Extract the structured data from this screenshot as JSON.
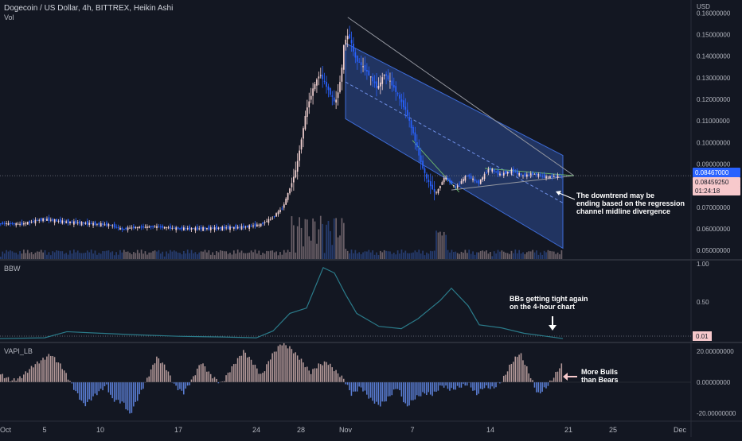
{
  "header": {
    "title": "Dogecoin / US Dollar, 4h, BITTREX, Heikin Ashi",
    "vol_label": "Vol"
  },
  "axis": {
    "currency": "USD"
  },
  "tags": {
    "price": "0.08467000",
    "price2": "0.08459250",
    "countdown": "01:24:18",
    "bbw_value": "0.01"
  },
  "annotations": {
    "main_1": "The downtrend may be",
    "main_2": "ending based on the regression",
    "main_3": "channel midline divergence",
    "bbw_1": "BBs getting tight again",
    "bbw_2": "on the 4-hour chart",
    "vapi_1": "More Bulls",
    "vapi_2": "than Bears"
  },
  "indicators": {
    "bbw": "BBW",
    "vapi": "VAPI_LB"
  },
  "colors": {
    "up": "#f5d4d4",
    "down": "#2962ff",
    "channel": "#3d6bd6",
    "bg": "#131722",
    "bbw_line": "#2b7b8a",
    "vapi_pos": "#b59a9a",
    "vapi_neg": "#5b7fd6"
  },
  "chart_data": [
    {
      "type": "candlestick",
      "title": "Dogecoin / US Dollar, 4h, BITTREX, Heikin Ashi",
      "ylim": [
        0.046,
        0.166
      ],
      "y_ticks": [
        0.05,
        0.06,
        0.07,
        0.08,
        0.09,
        0.1,
        0.11,
        0.12,
        0.13,
        0.14,
        0.15,
        0.16
      ],
      "x_ticks": [
        "Oct",
        "5",
        "10",
        "17",
        "24",
        "28",
        "Nov",
        "7",
        "14",
        "21",
        "25",
        "Dec"
      ],
      "x_tick_days": [
        1,
        5,
        10,
        17,
        24,
        28,
        32,
        38,
        45,
        52,
        56,
        62
      ],
      "x_range_days": [
        1,
        63
      ],
      "close_path": [
        [
          1,
          0.0625
        ],
        [
          3,
          0.0622
        ],
        [
          5,
          0.0645
        ],
        [
          7,
          0.0632
        ],
        [
          9,
          0.0625
        ],
        [
          11,
          0.0618
        ],
        [
          12,
          0.0598
        ],
        [
          13,
          0.0606
        ],
        [
          15,
          0.061
        ],
        [
          17,
          0.0602
        ],
        [
          19,
          0.0601
        ],
        [
          21,
          0.0604
        ],
        [
          23,
          0.0608
        ],
        [
          24.5,
          0.062
        ],
        [
          25.5,
          0.065
        ],
        [
          26.5,
          0.07
        ],
        [
          27.2,
          0.08
        ],
        [
          27.7,
          0.088
        ],
        [
          28.1,
          0.1
        ],
        [
          28.6,
          0.115
        ],
        [
          29.2,
          0.125
        ],
        [
          29.8,
          0.132
        ],
        [
          30.5,
          0.125
        ],
        [
          31.2,
          0.118
        ],
        [
          31.7,
          0.13
        ],
        [
          32.0,
          0.147
        ],
        [
          32.4,
          0.15
        ],
        [
          33,
          0.139
        ],
        [
          34,
          0.133
        ],
        [
          35,
          0.125
        ],
        [
          35.6,
          0.132
        ],
        [
          36.5,
          0.125
        ],
        [
          37.5,
          0.115
        ],
        [
          38.2,
          0.104
        ],
        [
          38.8,
          0.092
        ],
        [
          39.4,
          0.083
        ],
        [
          40.2,
          0.076
        ],
        [
          41,
          0.084
        ],
        [
          42,
          0.079
        ],
        [
          43,
          0.085
        ],
        [
          44,
          0.081
        ],
        [
          45,
          0.088
        ],
        [
          46,
          0.085
        ],
        [
          47,
          0.087
        ],
        [
          48,
          0.0845
        ],
        [
          49,
          0.0855
        ],
        [
          50,
          0.084
        ],
        [
          51.5,
          0.0846
        ]
      ],
      "regression_channel": {
        "start_day": 32.0,
        "end_day": 51.5,
        "upper": [
          0.146,
          0.094
        ],
        "mid": [
          0.128,
          0.072
        ],
        "lower": [
          0.111,
          0.051
        ]
      },
      "triangle": {
        "apex_day": 52.5,
        "apex_value": 0.0846,
        "upper_start": [
          32.2,
          0.158
        ],
        "lower_start": [
          41.5,
          0.078
        ]
      },
      "volume_note": "volume bars along the bottom of the price pane"
    },
    {
      "type": "line",
      "name": "BBW",
      "ylim": [
        0,
        1.0
      ],
      "y_ticks": [
        0.5,
        1.0
      ],
      "points": [
        [
          1,
          0.02
        ],
        [
          5,
          0.03
        ],
        [
          7,
          0.11
        ],
        [
          10,
          0.09
        ],
        [
          13,
          0.07
        ],
        [
          17,
          0.05
        ],
        [
          21,
          0.04
        ],
        [
          24,
          0.03
        ],
        [
          25.5,
          0.12
        ],
        [
          27,
          0.35
        ],
        [
          28.5,
          0.42
        ],
        [
          30,
          0.95
        ],
        [
          31,
          0.88
        ],
        [
          32,
          0.6
        ],
        [
          33,
          0.35
        ],
        [
          35,
          0.18
        ],
        [
          37,
          0.15
        ],
        [
          38.5,
          0.28
        ],
        [
          40.5,
          0.52
        ],
        [
          41.5,
          0.68
        ],
        [
          43,
          0.45
        ],
        [
          44,
          0.2
        ],
        [
          46,
          0.16
        ],
        [
          48,
          0.09
        ],
        [
          50,
          0.05
        ],
        [
          51.5,
          0.02
        ]
      ]
    },
    {
      "type": "bar",
      "name": "VAPI_LB",
      "ylim": [
        -25,
        25
      ],
      "y_ticks": [
        20.0,
        0.0,
        -20.0
      ],
      "y_tick_labels": [
        "20.00000000",
        "0.00000000",
        "-20.00000000"
      ],
      "points": [
        [
          1,
          5
        ],
        [
          2,
          1
        ],
        [
          2.8,
          3
        ],
        [
          4,
          11
        ],
        [
          5.5,
          18
        ],
        [
          6.5,
          10
        ],
        [
          7.5,
          -3
        ],
        [
          8.5,
          -15
        ],
        [
          9.5,
          -8
        ],
        [
          10.5,
          -2
        ],
        [
          11,
          -11
        ],
        [
          12,
          -13
        ],
        [
          12.6,
          -21
        ],
        [
          13.4,
          -9
        ],
        [
          14.2,
          3
        ],
        [
          15,
          16
        ],
        [
          15.8,
          10
        ],
        [
          16.6,
          -2
        ],
        [
          17.4,
          -7
        ],
        [
          18.2,
          2
        ],
        [
          19,
          13
        ],
        [
          19.8,
          5
        ],
        [
          20.8,
          -1
        ],
        [
          21.8,
          10
        ],
        [
          22.8,
          20
        ],
        [
          23.6,
          13
        ],
        [
          24.4,
          4
        ],
        [
          25.3,
          17
        ],
        [
          26.2,
          25
        ],
        [
          27,
          22
        ],
        [
          28,
          14
        ],
        [
          28.8,
          6
        ],
        [
          29.5,
          11
        ],
        [
          30.3,
          13
        ],
        [
          31.2,
          6
        ],
        [
          31.8,
          2
        ],
        [
          32.5,
          -8
        ],
        [
          33.3,
          -3
        ],
        [
          34.2,
          -11
        ],
        [
          35,
          -15
        ],
        [
          35.8,
          -10
        ],
        [
          36.6,
          -3
        ],
        [
          37.4,
          -16
        ],
        [
          38.2,
          -10
        ],
        [
          39,
          -7
        ],
        [
          39.8,
          -8
        ],
        [
          40.6,
          -2
        ],
        [
          41.4,
          -5
        ],
        [
          42.2,
          -3
        ],
        [
          43,
          -1
        ],
        [
          43.7,
          -8
        ],
        [
          44.4,
          -3
        ],
        [
          45.2,
          -4
        ],
        [
          46,
          1
        ],
        [
          46.8,
          12
        ],
        [
          47.6,
          19
        ],
        [
          48.4,
          6
        ],
        [
          49.2,
          -8
        ],
        [
          50,
          -3
        ],
        [
          50.6,
          3
        ],
        [
          51.2,
          10
        ],
        [
          51.5,
          12
        ]
      ]
    }
  ]
}
